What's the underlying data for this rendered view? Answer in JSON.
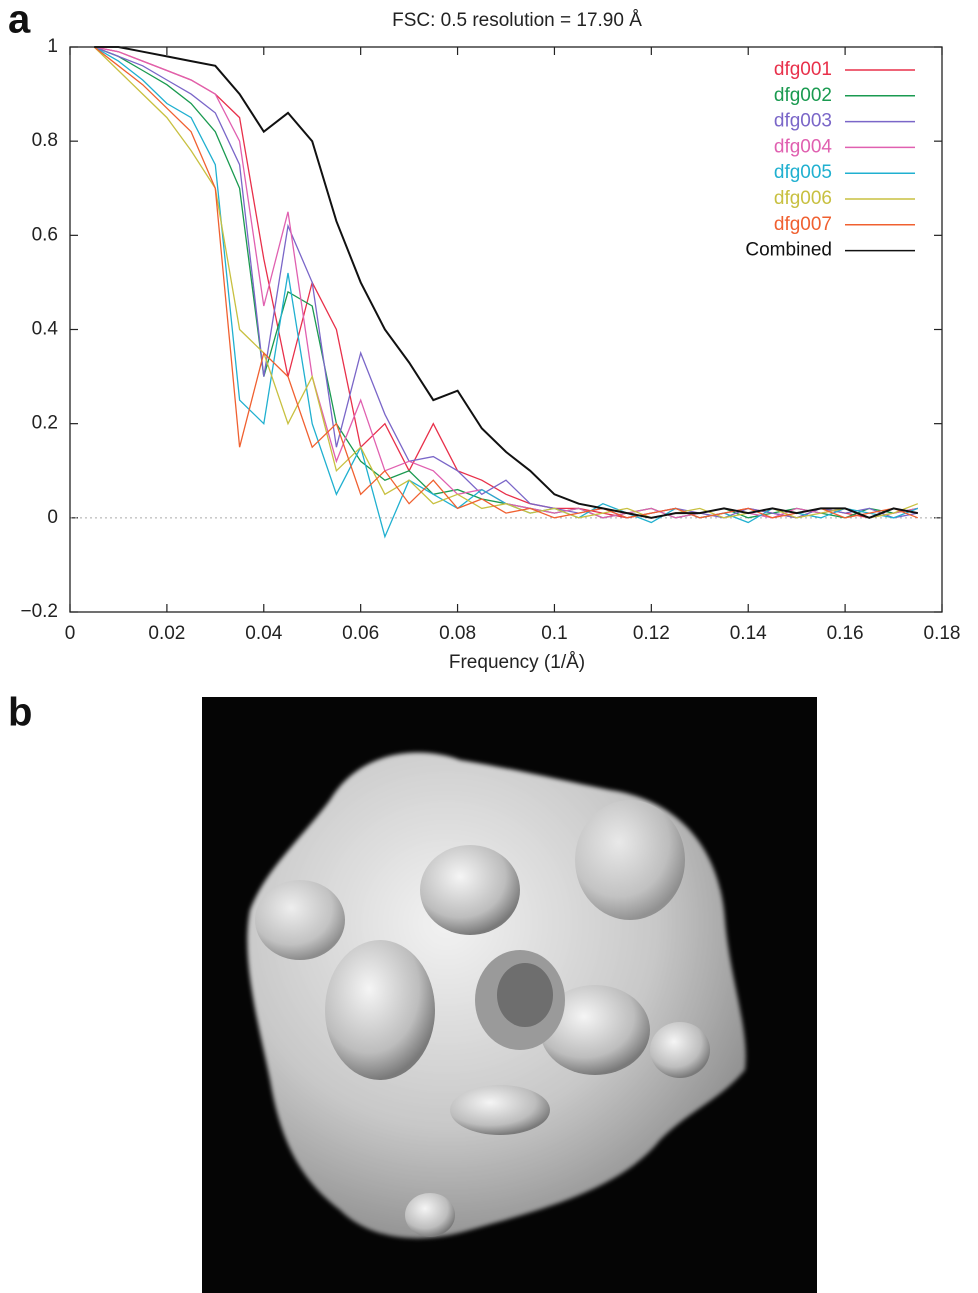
{
  "panel_labels": [
    "a",
    "b"
  ],
  "chart_data": {
    "type": "line",
    "title": "FSC: 0.5 resolution = 17.90 Å",
    "x_label": "Frequency (1/Å)",
    "x": [
      0.005,
      0.01,
      0.015,
      0.02,
      0.025,
      0.03,
      0.035,
      0.04,
      0.045,
      0.05,
      0.055,
      0.06,
      0.065,
      0.07,
      0.075,
      0.08,
      0.085,
      0.09,
      0.095,
      0.1,
      0.105,
      0.11,
      0.115,
      0.12,
      0.125,
      0.13,
      0.135,
      0.14,
      0.145,
      0.15,
      0.155,
      0.16,
      0.165,
      0.17,
      0.175
    ],
    "series": [
      {
        "name": "dfg001",
        "color": "#e8304a",
        "values": [
          1.0,
          0.99,
          0.97,
          0.95,
          0.93,
          0.9,
          0.85,
          0.55,
          0.3,
          0.5,
          0.4,
          0.15,
          0.2,
          0.1,
          0.2,
          0.1,
          0.08,
          0.05,
          0.03,
          0.02,
          0.02,
          0.01,
          0.0,
          0.01,
          0.02,
          0.0,
          0.01,
          0.02,
          0.01,
          0.0,
          0.02,
          0.01,
          0.0,
          0.02,
          0.01
        ]
      },
      {
        "name": "dfg002",
        "color": "#1a9a50",
        "values": [
          1.0,
          0.98,
          0.95,
          0.92,
          0.88,
          0.82,
          0.7,
          0.3,
          0.48,
          0.45,
          0.2,
          0.12,
          0.08,
          0.1,
          0.05,
          0.06,
          0.04,
          0.03,
          0.02,
          0.01,
          0.02,
          0.0,
          0.01,
          0.02,
          0.0,
          0.01,
          0.02,
          0.0,
          0.01,
          0.02,
          0.01,
          0.0,
          0.02,
          0.01,
          0.02
        ]
      },
      {
        "name": "dfg003",
        "color": "#7a66c8",
        "values": [
          1.0,
          0.98,
          0.96,
          0.93,
          0.9,
          0.86,
          0.75,
          0.3,
          0.62,
          0.5,
          0.15,
          0.35,
          0.22,
          0.12,
          0.13,
          0.1,
          0.05,
          0.08,
          0.03,
          0.02,
          0.01,
          0.02,
          0.0,
          0.01,
          0.02,
          0.01,
          0.0,
          0.02,
          0.01,
          0.0,
          0.02,
          0.01,
          0.02,
          0.0,
          0.01
        ]
      },
      {
        "name": "dfg004",
        "color": "#e060b0",
        "values": [
          1.0,
          0.99,
          0.97,
          0.95,
          0.93,
          0.9,
          0.8,
          0.45,
          0.65,
          0.3,
          0.12,
          0.25,
          0.1,
          0.12,
          0.1,
          0.05,
          0.06,
          0.03,
          0.02,
          0.01,
          0.02,
          0.0,
          0.01,
          0.02,
          0.0,
          0.01,
          0.02,
          0.01,
          0.0,
          0.02,
          0.01,
          0.02,
          0.0,
          0.01,
          0.02
        ]
      },
      {
        "name": "dfg005",
        "color": "#20b0d0",
        "values": [
          1.0,
          0.97,
          0.93,
          0.88,
          0.85,
          0.75,
          0.25,
          0.2,
          0.52,
          0.2,
          0.05,
          0.15,
          -0.04,
          0.08,
          0.05,
          0.02,
          0.06,
          0.03,
          0.01,
          0.02,
          0.0,
          0.03,
          0.01,
          -0.01,
          0.02,
          0.0,
          0.01,
          -0.01,
          0.02,
          0.01,
          0.0,
          0.02,
          0.01,
          0.0,
          0.02
        ]
      },
      {
        "name": "dfg006",
        "color": "#c8c040",
        "values": [
          1.0,
          0.95,
          0.9,
          0.85,
          0.78,
          0.7,
          0.4,
          0.35,
          0.2,
          0.3,
          0.1,
          0.15,
          0.05,
          0.08,
          0.03,
          0.05,
          0.02,
          0.03,
          0.01,
          0.02,
          0.0,
          0.01,
          0.02,
          0.0,
          0.01,
          0.02,
          0.0,
          0.01,
          0.02,
          0.0,
          0.01,
          0.02,
          0.0,
          0.01,
          0.03
        ]
      },
      {
        "name": "dfg007",
        "color": "#f06030",
        "values": [
          1.0,
          0.96,
          0.92,
          0.87,
          0.82,
          0.7,
          0.15,
          0.35,
          0.3,
          0.15,
          0.2,
          0.05,
          0.1,
          0.03,
          0.08,
          0.02,
          0.04,
          0.01,
          0.02,
          0.0,
          0.01,
          0.02,
          0.0,
          0.01,
          0.02,
          0.0,
          0.01,
          0.02,
          0.0,
          0.01,
          0.02,
          0.0,
          0.01,
          0.02,
          0.0
        ]
      },
      {
        "name": "Combined",
        "color": "#111111",
        "values": [
          1.0,
          1.0,
          0.99,
          0.98,
          0.97,
          0.96,
          0.9,
          0.82,
          0.86,
          0.8,
          0.63,
          0.5,
          0.4,
          0.33,
          0.25,
          0.27,
          0.19,
          0.14,
          0.1,
          0.05,
          0.03,
          0.02,
          0.01,
          0.0,
          0.01,
          0.01,
          0.02,
          0.01,
          0.02,
          0.01,
          0.02,
          0.02,
          0.0,
          0.02,
          0.01
        ]
      }
    ],
    "xlim": [
      0,
      0.18
    ],
    "xticks": [
      0,
      0.02,
      0.04,
      0.06,
      0.08,
      0.1,
      0.12,
      0.14,
      0.16,
      0.18
    ],
    "ylim": [
      -0.2,
      1
    ],
    "yticks": [
      {
        "value": -0.2,
        "label": "−0.2"
      },
      0,
      0.2,
      0.4,
      0.6,
      0.8,
      1
    ],
    "legend": "upper right",
    "zero_line": true
  }
}
